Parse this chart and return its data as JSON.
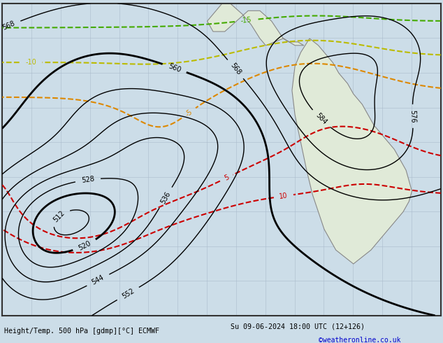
{
  "title_left": "Height/Temp. 500 hPa [gdmp][°C] ECMWF",
  "title_right": "Su 09-06-2024 18:00 UTC (12+126)",
  "copyright": "©weatheronline.co.uk",
  "bg_color": "#ccdde8",
  "land_color": "#e0ead8",
  "border_color": "#888888",
  "grid_color": "#aabbcc",
  "height_line_color": "#000000",
  "temp_pos_color": "#cc0000",
  "temp_orange_color": "#dd8800",
  "temp_yellow_color": "#bbbb00",
  "temp_green_color": "#44aa00",
  "temp_cyan_color": "#00aacc",
  "temp_blue_color": "#0033cc",
  "figsize": [
    6.34,
    4.9
  ],
  "dpi": 100
}
